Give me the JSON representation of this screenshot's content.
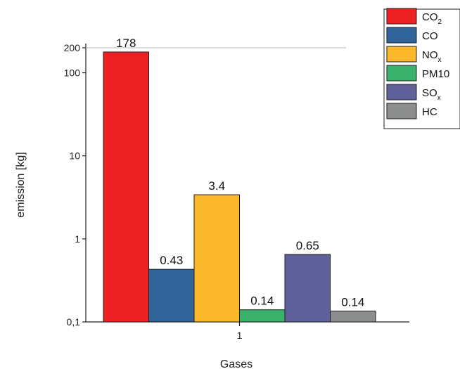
{
  "chart_data": {
    "type": "bar",
    "title": "",
    "xlabel": "Gases",
    "ylabel": "emission [kg]",
    "x_scale": "category",
    "y_scale": "log",
    "ylim": [
      0.1,
      200
    ],
    "categories": [
      "1"
    ],
    "yticks": [
      {
        "value": 0.1,
        "label": "0,1"
      },
      {
        "value": 1,
        "label": "1"
      },
      {
        "value": 10,
        "label": "10"
      },
      {
        "value": 100,
        "label": "100"
      },
      {
        "value": 200,
        "label": "200"
      }
    ],
    "grid": false,
    "legend_position": "top-right",
    "series": [
      {
        "name": "CO",
        "sub": "2",
        "value": 178,
        "label": "178",
        "color": "#ed2024"
      },
      {
        "name": "CO",
        "sub": "",
        "value": 0.43,
        "label": "0.43",
        "color": "#2f6399"
      },
      {
        "name": "NO",
        "sub": "x",
        "value": 3.4,
        "label": "3.4",
        "color": "#fcb82b"
      },
      {
        "name": "PM10",
        "sub": "",
        "value": 0.14,
        "label": "0.14",
        "color": "#3ab26b"
      },
      {
        "name": "SO",
        "sub": "x",
        "value": 0.65,
        "label": "0.65",
        "color": "#5f6099"
      },
      {
        "name": "HC",
        "sub": "",
        "value": 0.135,
        "label": "0.14",
        "color": "#8c8e8e"
      }
    ]
  }
}
